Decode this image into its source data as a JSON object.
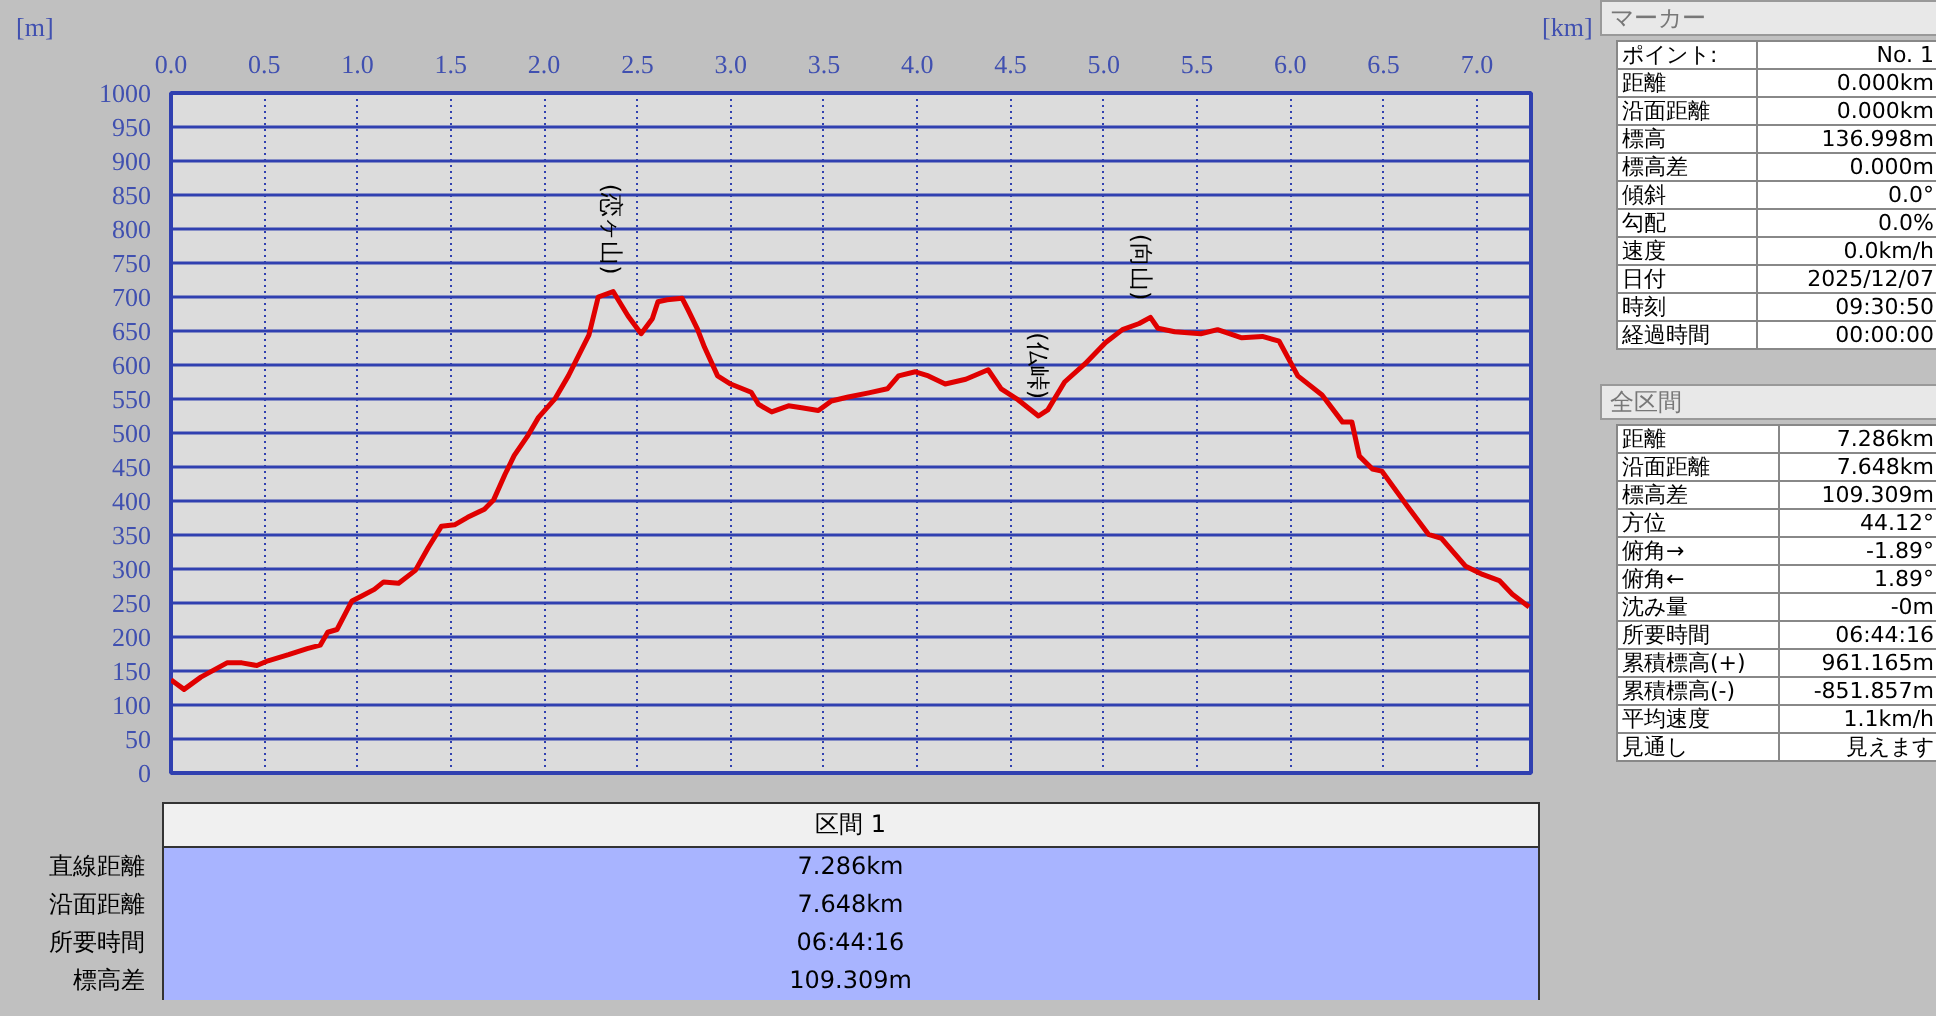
{
  "chart_data": [
    {
      "type": "line",
      "xlabel": "[km]",
      "ylabel": "[m]",
      "x": [
        0,
        0.025,
        0.07,
        0.16,
        0.3,
        0.38,
        0.46,
        0.52,
        0.63,
        0.73,
        0.8,
        0.84,
        0.89,
        0.97,
        1.02,
        1.09,
        1.14,
        1.22,
        1.31,
        1.38,
        1.45,
        1.52,
        1.59,
        1.68,
        1.73,
        1.79,
        1.84,
        1.91,
        1.97,
        2.06,
        2.13,
        2.24,
        2.29,
        2.37,
        2.45,
        2.52,
        2.58,
        2.61,
        2.66,
        2.74,
        2.77,
        2.82,
        2.86,
        2.93,
        3.0,
        3.11,
        3.15,
        3.22,
        3.31,
        3.38,
        3.47,
        3.54,
        3.63,
        3.74,
        3.84,
        3.9,
        3.99,
        4.06,
        4.15,
        4.26,
        4.38,
        4.45,
        4.54,
        4.65,
        4.7,
        4.79,
        4.9,
        5.01,
        5.1,
        5.19,
        5.25,
        5.29,
        5.38,
        5.52,
        5.61,
        5.74,
        5.85,
        5.94,
        6.04,
        6.17,
        6.28,
        6.33,
        6.37,
        6.44,
        6.49,
        6.62,
        6.74,
        6.81,
        6.94,
        7.03,
        7.12,
        7.19,
        7.28
      ],
      "series": [
        {
          "color": "#e00000",
          "values": [
            137,
            132,
            123,
            141,
            162,
            162,
            158,
            165,
            174,
            183,
            188,
            207,
            211,
            253,
            260,
            270,
            281,
            279,
            298,
            332,
            363,
            365,
            376,
            388,
            402,
            439,
            467,
            495,
            523,
            551,
            584,
            644,
            700,
            708,
            672,
            646,
            668,
            693,
            696,
            698,
            682,
            654,
            626,
            584,
            572,
            560,
            542,
            531,
            540,
            537,
            533,
            547,
            553,
            559,
            565,
            584,
            590,
            584,
            572,
            579,
            593,
            565,
            549,
            525,
            534,
            575,
            602,
            633,
            652,
            661,
            670,
            654,
            649,
            646,
            652,
            640,
            642,
            635,
            584,
            556,
            516,
            516,
            466,
            447,
            444,
            395,
            351,
            345,
            304,
            292,
            283,
            263,
            244
          ]
        }
      ],
      "xlim": [
        0,
        7.29
      ],
      "ylim": [
        0,
        1000
      ],
      "xticks": [
        {
          "value": 0,
          "label": "0.0"
        },
        0.5,
        {
          "value": 1,
          "label": "1.0"
        },
        1.5,
        {
          "value": 2,
          "label": "2.0"
        },
        2.5,
        {
          "value": 3,
          "label": "3.0"
        },
        3.5,
        {
          "value": 4,
          "label": "4.0"
        },
        4.5,
        {
          "value": 5,
          "label": "5.0"
        },
        5.5,
        {
          "value": 6,
          "label": "6.0"
        },
        6.5,
        {
          "value": 7,
          "label": "7.0"
        }
      ],
      "yticks": [
        0,
        50,
        100,
        150,
        200,
        250,
        300,
        350,
        400,
        450,
        500,
        550,
        600,
        650,
        700,
        750,
        800,
        850,
        900,
        950,
        1000
      ],
      "grid": true,
      "line_style": "solid",
      "annotations": [
        {
          "text": "(恋ヶ山)",
          "x": 2.36,
          "y": 708
        },
        {
          "text": "(仏峠)",
          "x": 4.65,
          "y": 525
        },
        {
          "text": "(向山)",
          "x": 5.2,
          "y": 670
        }
      ]
    },
    {
      "type": "other",
      "title": "区間 1",
      "annotations": [
        "直線距離",
        "7.286km",
        "沿面距離",
        "7.648km",
        "所要時間",
        "06:44:16",
        "標高差",
        "109.309m"
      ]
    },
    {
      "type": "other",
      "title": "マーカー",
      "annotations": [
        "ポイント:",
        "No. 1",
        "距離",
        "0.000km",
        "沿面距離",
        "0.000km",
        "標高",
        "136.998m",
        "標高差",
        "0.000m",
        "傾斜",
        "0.0°",
        "勾配",
        "0.0%",
        "速度",
        "0.0km/h",
        "日付",
        "2025/12/07",
        "時刻",
        "09:30:50",
        "経過時間",
        "00:00:00"
      ]
    },
    {
      "type": "other",
      "title": "全区間",
      "annotations": [
        "距離",
        "7.286km",
        "沿面距離",
        "7.648km",
        "標高差",
        "109.309m",
        "方位",
        "44.12°",
        "俯角→",
        "-1.89°",
        "俯角←",
        "1.89°",
        "沈み量",
        "-0m",
        "所要時間",
        "06:44:16",
        "累積標高(+)",
        "961.165m",
        "累積標高(-)",
        "-851.857m",
        "平均速度",
        "1.1km/h",
        "見通し",
        "見えます"
      ]
    }
  ]
}
